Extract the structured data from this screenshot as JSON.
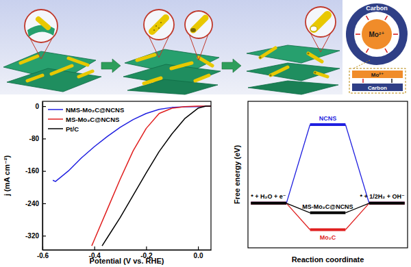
{
  "schematic": {
    "ring_label": "Carbon",
    "core_label": "Mo²⁺",
    "inset_ion_label": "Mo²⁺",
    "inset_layer_label": "Carbon"
  },
  "chart_data": [
    {
      "type": "line",
      "x_label": "Potential (V vs. RHE)",
      "y_label": "j (mA cm⁻²)",
      "xlim": [
        -0.6,
        0.05
      ],
      "ylim": [
        -355,
        12
      ],
      "xticks": [
        -0.6,
        -0.4,
        -0.2,
        {
          "value": 0,
          "label": "0.0"
        }
      ],
      "yticks": [
        -320,
        -240,
        -160,
        -80,
        0
      ],
      "legend": "upper left",
      "series": [
        {
          "name": "NMS-Mo₂C@NCNS",
          "color": "#1f1fe0",
          "x": [
            -0.56,
            -0.55,
            -0.5,
            -0.45,
            -0.4,
            -0.35,
            -0.3,
            -0.25,
            -0.2,
            -0.15,
            -0.1,
            -0.05,
            0,
            0.05
          ],
          "values": [
            -183,
            -186,
            -160,
            -128,
            -100,
            -75,
            -52,
            -33,
            -18,
            -8,
            -3,
            -1.5,
            -1,
            0
          ]
        },
        {
          "name": "MS-Mo₂C@NCNS",
          "color": "#e01f1f",
          "x": [
            -0.41,
            -0.4,
            -0.35,
            -0.3,
            -0.25,
            -0.2,
            -0.15,
            -0.1,
            -0.05,
            0,
            0.05
          ],
          "values": [
            -345,
            -330,
            -255,
            -180,
            -110,
            -55,
            -18,
            -5,
            -1,
            0,
            0
          ]
        },
        {
          "name": "Pt/C",
          "color": "#000000",
          "x": [
            -0.37,
            -0.35,
            -0.3,
            -0.25,
            -0.2,
            -0.15,
            -0.1,
            -0.05,
            0,
            0.03,
            0.05
          ],
          "values": [
            -345,
            -325,
            -275,
            -220,
            -165,
            -112,
            -68,
            -30,
            -5,
            0,
            0
          ]
        }
      ]
    },
    {
      "type": "levels",
      "x_label": "Reaction coordinate",
      "y_label": "Free energy (eV)",
      "ylim": [
        -1.4,
        3.2
      ],
      "categories": [
        "* + H₂O + e⁻",
        null,
        "* + 1/2H₂ + OH⁻"
      ],
      "series": [
        {
          "name": "NCNS",
          "color": "#1f1fe0",
          "values": [
            0,
            2.47,
            0
          ]
        },
        {
          "name": "Mo₂C",
          "color": "#e01f1f",
          "values": [
            0,
            -0.83,
            0
          ]
        },
        {
          "name": "MS-Mo₂C@NCNS",
          "color": "#000000",
          "values": [
            0,
            -0.3,
            0
          ]
        }
      ]
    }
  ]
}
